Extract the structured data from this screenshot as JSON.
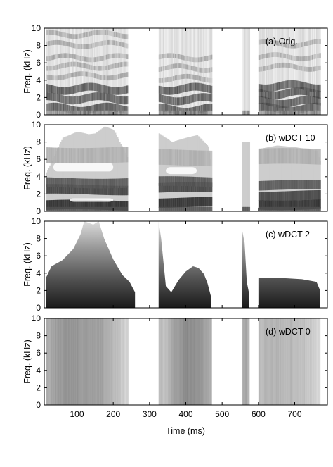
{
  "chart_data": {
    "type": "heatmap",
    "xlabel": "Time (ms)",
    "xlim": [
      10,
      790
    ],
    "x_ticks": [
      100,
      200,
      300,
      400,
      500,
      600,
      700
    ],
    "shared_x_axis": true,
    "colormap": "grayscale (darker = higher energy)",
    "panels": [
      {
        "title": "(a) Orig.",
        "ylabel": "Freq. (kHz)",
        "ylim": [
          0,
          10
        ],
        "y_ticks": [
          0,
          2,
          4,
          6,
          8,
          10
        ],
        "description_kind": "original spectrogram",
        "voiced_segments_ms": [
          [
            15,
            240
          ],
          [
            325,
            470
          ],
          [
            555,
            575
          ],
          [
            600,
            770
          ]
        ],
        "formant_bands_khz": [
          {
            "segment": 0,
            "bands": [
              0.7,
              1.9,
              3.0,
              4.5,
              5.6,
              6.6,
              8.1,
              9.3
            ]
          },
          {
            "segment": 1,
            "bands": [
              0.6,
              1.8,
              3.0,
              4.2,
              5.4,
              6.6
            ]
          },
          {
            "segment": 3,
            "bands": [
              0.7,
              1.5,
              2.5,
              3.3,
              5.5,
              6.7,
              8.2
            ]
          }
        ]
      },
      {
        "title": "(b) wDCT 10",
        "ylabel": "Freq. (kHz)",
        "ylim": [
          0,
          10
        ],
        "y_ticks": [
          0,
          2,
          4,
          6,
          8,
          10
        ],
        "voiced_segments_ms": [
          [
            15,
            240
          ],
          [
            325,
            470
          ],
          [
            555,
            575
          ],
          [
            600,
            770
          ]
        ],
        "formant_bands_khz": [
          {
            "segment": 0,
            "bands": [
              0.7,
              2.5,
              3.3,
              6.5
            ]
          },
          {
            "segment": 1,
            "bands": [
              1.0,
              2.7,
              3.4,
              6.2
            ]
          },
          {
            "segment": 3,
            "bands": [
              0.8,
              1.8,
              3.0,
              6.3
            ]
          }
        ],
        "envelope_top_khz": [
          {
            "segment": 0,
            "x": [
              15,
              60,
              100,
              130,
              150,
              175,
              200,
              240
            ],
            "y": [
              4.5,
              8.5,
              9.2,
              8.9,
              9.0,
              9.8,
              9.4,
              6.0
            ]
          },
          {
            "segment": 1,
            "x": [
              325,
              360,
              400,
              430,
              460,
              470
            ],
            "y": [
              9.0,
              8.0,
              8.5,
              8.8,
              7.5,
              5.0
            ]
          },
          {
            "segment": 3,
            "x": [
              600,
              650,
              700,
              760,
              770
            ],
            "y": [
              7.2,
              7.6,
              7.4,
              7.0,
              5.5
            ]
          }
        ]
      },
      {
        "title": "(c) wDCT 2",
        "ylabel": "Freq. (kHz)",
        "ylim": [
          0,
          10
        ],
        "y_ticks": [
          0,
          2,
          4,
          6,
          8,
          10
        ],
        "voiced_segments_ms": [
          [
            15,
            260
          ],
          [
            325,
            470
          ],
          [
            555,
            575
          ],
          [
            600,
            770
          ]
        ],
        "envelope_top_khz": [
          {
            "segment": 0,
            "x": [
              15,
              30,
              60,
              90,
              110,
              120,
              145,
              160,
              175,
              200,
              225,
              245,
              260
            ],
            "y": [
              3.5,
              4.8,
              5.5,
              6.8,
              8.5,
              10.0,
              9.6,
              10.0,
              8.0,
              5.6,
              3.8,
              3.0,
              1.8
            ]
          },
          {
            "segment": 1,
            "x": [
              325,
              332,
              345,
              360,
              380,
              400,
              420,
              435,
              450,
              460,
              470
            ],
            "y": [
              10.0,
              8.0,
              2.5,
              1.8,
              3.2,
              4.2,
              4.8,
              4.6,
              3.9,
              2.8,
              1.2
            ]
          },
          {
            "segment": 2,
            "x": [
              555,
              562,
              568,
              575
            ],
            "y": [
              9.0,
              7.5,
              3.0,
              1.5
            ]
          },
          {
            "segment": 3,
            "x": [
              600,
              630,
              680,
              720,
              760,
              770
            ],
            "y": [
              3.4,
              3.5,
              3.4,
              3.3,
              3.0,
              2.0
            ]
          }
        ]
      },
      {
        "title": "(d) wDCT 0",
        "ylabel": "Freq. (kHz)",
        "ylim": [
          0,
          10
        ],
        "y_ticks": [
          0,
          2,
          4,
          6,
          8,
          10
        ],
        "uniform_frequency": true,
        "voiced_segments_ms": [
          [
            15,
            240
          ],
          [
            325,
            470
          ],
          [
            555,
            575
          ],
          [
            600,
            770
          ]
        ],
        "column_gray_levels": [
          {
            "segment": 0,
            "x": [
              15,
              40,
              80,
              120,
              160,
              200,
              240
            ],
            "g": [
              175,
              160,
              150,
              155,
              160,
              185,
              215
            ]
          },
          {
            "segment": 1,
            "x": [
              325,
              340,
              370,
              400,
              440,
              470
            ],
            "g": [
              185,
              195,
              160,
              140,
              150,
              175
            ]
          },
          {
            "segment": 2,
            "x": [
              555,
              565,
              575
            ],
            "g": [
              180,
              160,
              200
            ]
          },
          {
            "segment": 3,
            "x": [
              600,
              650,
              700,
              740,
              770
            ],
            "g": [
              185,
              180,
              185,
              200,
              220
            ]
          }
        ]
      }
    ]
  }
}
